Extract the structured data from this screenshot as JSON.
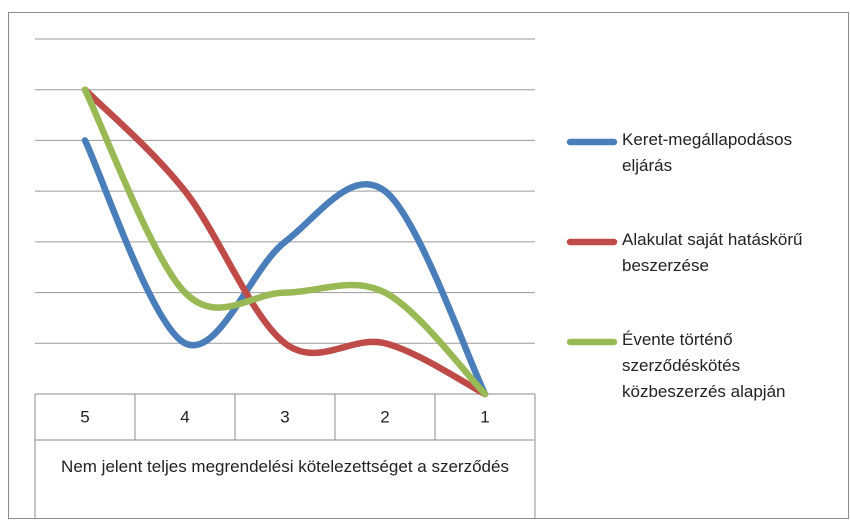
{
  "chart_data": {
    "type": "line",
    "x_label": "Nem jelent teljes megrendelési kötelezettséget a szerződés",
    "categories": [
      "5",
      "4",
      "3",
      "2",
      "1"
    ],
    "series": [
      {
        "name": "Keret-megállapodásos eljárás",
        "color": "#4a7ebb",
        "values": [
          5,
          1,
          3,
          4,
          0
        ]
      },
      {
        "name": "Alakulat saját hatáskörű beszerzése",
        "color": "#be4b48",
        "values": [
          6,
          4,
          1,
          1,
          0
        ]
      },
      {
        "name": "Évente történő szerződéskötés közbeszerzés alapján",
        "color": "#98b954",
        "values": [
          6,
          2,
          2,
          2,
          0
        ]
      }
    ],
    "ylim": [
      0,
      7
    ],
    "yticks": [
      0,
      1,
      2,
      3,
      4,
      5,
      6,
      7
    ],
    "grid": true,
    "smooth": true,
    "legend": "right"
  }
}
